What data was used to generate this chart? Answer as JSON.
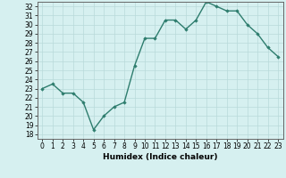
{
  "x": [
    0,
    1,
    2,
    3,
    4,
    5,
    6,
    7,
    8,
    9,
    10,
    11,
    12,
    13,
    14,
    15,
    16,
    17,
    18,
    19,
    20,
    21,
    22,
    23
  ],
  "y": [
    23,
    23.5,
    22.5,
    22.5,
    21.5,
    18.5,
    20,
    21,
    21.5,
    25.5,
    28.5,
    28.5,
    30.5,
    30.5,
    29.5,
    30.5,
    32.5,
    32,
    31.5,
    31.5,
    30,
    29,
    27.5,
    26.5
  ],
  "xlabel": "Humidex (Indice chaleur)",
  "line_color": "#2e7d6e",
  "marker": "D",
  "marker_size": 1.8,
  "bg_color": "#d6f0f0",
  "grid_color": "#b8dada",
  "ylim": [
    17.5,
    32.5
  ],
  "xlim": [
    -0.5,
    23.5
  ],
  "yticks": [
    18,
    19,
    20,
    21,
    22,
    23,
    24,
    25,
    26,
    27,
    28,
    29,
    30,
    31,
    32
  ],
  "xticks": [
    0,
    1,
    2,
    3,
    4,
    5,
    6,
    7,
    8,
    9,
    10,
    11,
    12,
    13,
    14,
    15,
    16,
    17,
    18,
    19,
    20,
    21,
    22,
    23
  ],
  "tick_fontsize": 5.5,
  "xlabel_fontsize": 6.5,
  "line_width": 1.0
}
